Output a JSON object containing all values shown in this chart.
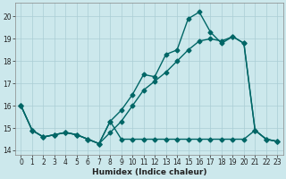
{
  "xlabel": "Humidex (Indice chaleur)",
  "background_color": "#cce8ec",
  "grid_color": "#aacdd4",
  "line_color": "#006666",
  "xlim": [
    -0.5,
    23.5
  ],
  "ylim": [
    13.8,
    20.6
  ],
  "yticks": [
    14,
    15,
    16,
    17,
    18,
    19,
    20
  ],
  "xticks": [
    0,
    1,
    2,
    3,
    4,
    5,
    6,
    7,
    8,
    9,
    10,
    11,
    12,
    13,
    14,
    15,
    16,
    17,
    18,
    19,
    20,
    21,
    22,
    23
  ],
  "series_noisy_x": [
    0,
    1,
    2,
    3,
    4,
    5,
    6,
    7,
    8,
    9,
    10,
    11,
    12,
    13,
    14,
    15,
    16,
    17,
    18,
    19,
    20,
    21,
    22,
    23
  ],
  "series_noisy_y": [
    16.0,
    14.9,
    14.6,
    14.7,
    14.8,
    14.7,
    14.5,
    14.3,
    15.3,
    14.5,
    14.5,
    14.5,
    14.5,
    14.5,
    14.5,
    14.5,
    14.5,
    14.5,
    14.5,
    14.5,
    14.5,
    14.9,
    14.5,
    14.4
  ],
  "series_jagged_x": [
    0,
    1,
    2,
    3,
    4,
    5,
    6,
    7,
    8,
    9,
    10,
    11,
    12,
    13,
    14,
    15,
    16,
    17,
    18,
    19,
    20,
    21,
    22,
    23
  ],
  "series_jagged_y": [
    16.0,
    14.9,
    14.6,
    14.7,
    14.8,
    14.7,
    14.5,
    14.3,
    15.3,
    15.8,
    16.5,
    17.4,
    17.3,
    18.3,
    18.5,
    19.9,
    20.2,
    19.3,
    18.8,
    19.1,
    18.8,
    14.9,
    14.5,
    14.4
  ],
  "series_smooth_x": [
    0,
    1,
    2,
    3,
    4,
    5,
    6,
    7,
    8,
    9,
    10,
    11,
    12,
    13,
    14,
    15,
    16,
    17,
    18,
    19,
    20,
    21,
    22,
    23
  ],
  "series_smooth_y": [
    16.0,
    14.9,
    14.6,
    14.7,
    14.8,
    14.7,
    14.5,
    14.3,
    14.8,
    15.3,
    16.0,
    16.7,
    17.1,
    17.5,
    18.0,
    18.5,
    18.9,
    19.0,
    18.9,
    19.1,
    18.8,
    14.9,
    14.5,
    14.4
  ],
  "marker_size": 2.5,
  "line_width": 1.0
}
